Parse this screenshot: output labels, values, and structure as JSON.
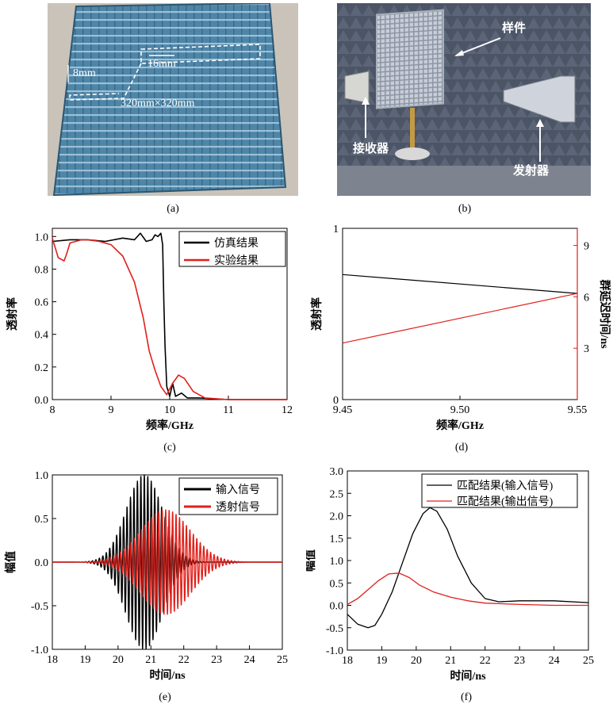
{
  "captions": {
    "a": "(a)",
    "b": "(b)",
    "c": "(c)",
    "d": "(d)",
    "e": "(e)",
    "f": "(f)"
  },
  "photo_a": {
    "dim_thickness": "8mm",
    "dim_period": "16mm",
    "dim_size": "320mm×320mm",
    "colors": {
      "plate": "#4f86a8",
      "bg": "#c9c3b9"
    }
  },
  "photo_b": {
    "label_sample": "样件",
    "label_receiver": "接收器",
    "label_transmitter": "发射器",
    "colors": {
      "chamber": "#4c5566"
    }
  },
  "chart_data": [
    {
      "id": "c",
      "type": "line",
      "xlabel": "频率/GHz",
      "ylabel": "透射率",
      "xlim": [
        8,
        12
      ],
      "ylim": [
        0,
        1.0
      ],
      "xticks": [
        "8",
        "9",
        "10",
        "11",
        "12"
      ],
      "yticks": [
        "0.0",
        "0.2",
        "0.4",
        "0.6",
        "0.8",
        "1.0"
      ],
      "legend": "top-right",
      "series": [
        {
          "name": "仿真结果",
          "color": "#000000",
          "x": [
            8.0,
            8.3,
            8.6,
            8.9,
            9.2,
            9.4,
            9.5,
            9.6,
            9.7,
            9.75,
            9.8,
            9.85,
            9.88,
            9.9,
            9.92,
            9.95,
            10.0,
            10.05,
            10.1,
            10.2,
            10.3,
            10.5,
            11.0,
            12.0
          ],
          "y": [
            0.97,
            0.98,
            0.98,
            0.97,
            0.99,
            0.98,
            1.02,
            0.97,
            0.98,
            1.01,
            1.0,
            1.02,
            0.95,
            0.6,
            0.33,
            0.08,
            0.02,
            0.1,
            0.02,
            0.04,
            0.01,
            0.01,
            0.0,
            0.0
          ]
        },
        {
          "name": "实验结果",
          "color": "#e0201b",
          "x": [
            8.0,
            8.1,
            8.2,
            8.25,
            8.3,
            8.5,
            8.6,
            8.8,
            9.0,
            9.2,
            9.4,
            9.55,
            9.65,
            9.75,
            9.85,
            9.95,
            10.05,
            10.15,
            10.25,
            10.4,
            10.6,
            11.0,
            12.0
          ],
          "y": [
            0.99,
            0.87,
            0.85,
            0.9,
            0.96,
            0.98,
            0.98,
            0.97,
            0.95,
            0.88,
            0.72,
            0.5,
            0.3,
            0.18,
            0.08,
            0.03,
            0.1,
            0.15,
            0.13,
            0.05,
            0.01,
            0.0,
            0.0
          ]
        }
      ]
    },
    {
      "id": "d",
      "type": "line",
      "xlabel": "频率/GHz",
      "ylabel": "透射率",
      "ylabel_right": "群延迟时间/ns",
      "xlim": [
        9.45,
        9.55
      ],
      "ylim": [
        0,
        1
      ],
      "ylim_right": [
        0,
        10
      ],
      "xticks": [
        "9.45",
        "9.50",
        "9.55"
      ],
      "yticks": [
        "0",
        "1"
      ],
      "yticks_right": [
        "3",
        "6",
        "9"
      ],
      "series": [
        {
          "name": "透射率",
          "color": "#000000",
          "axis": "left",
          "x": [
            9.45,
            9.55
          ],
          "y": [
            0.73,
            0.62
          ]
        },
        {
          "name": "群延迟时间",
          "color": "#e0201b",
          "axis": "right",
          "x": [
            9.45,
            9.55
          ],
          "y": [
            3.3,
            6.2
          ]
        }
      ]
    },
    {
      "id": "e",
      "type": "line",
      "xlabel": "时间/ns",
      "ylabel": "幅值",
      "xlim": [
        18,
        25
      ],
      "ylim": [
        -1.0,
        1.0
      ],
      "xticks": [
        "18",
        "19",
        "20",
        "21",
        "22",
        "23",
        "24",
        "25"
      ],
      "yticks": [
        "-1.0",
        "-0.5",
        "0.0",
        "0.5",
        "1.0"
      ],
      "legend": "top-right",
      "series": [
        {
          "name": "输入信号",
          "color": "#000000",
          "envelope": {
            "center_ns": 20.8,
            "sigma_ns": 0.55,
            "amplitude": 1.0,
            "freq_ghz": 9.5
          }
        },
        {
          "name": "透射信号",
          "color": "#e0201b",
          "envelope": {
            "center_ns": 21.45,
            "sigma_ns": 0.75,
            "amplitude": 0.6,
            "freq_ghz": 9.5
          }
        }
      ]
    },
    {
      "id": "f",
      "type": "line",
      "xlabel": "时间/ns",
      "ylabel": "幅值",
      "xlim": [
        18,
        25
      ],
      "ylim": [
        -1.0,
        3.0
      ],
      "xticks": [
        "18",
        "19",
        "20",
        "21",
        "22",
        "23",
        "24",
        "25"
      ],
      "yticks": [
        "-1.0",
        "-0.5",
        "0.0",
        "0.5",
        "1.0",
        "1.5",
        "2.0",
        "2.5",
        "3.0"
      ],
      "legend": "top-right",
      "series": [
        {
          "name": "匹配结果(输入信号)",
          "color": "#000000",
          "x": [
            18.0,
            18.3,
            18.6,
            18.8,
            19.0,
            19.3,
            19.6,
            19.9,
            20.2,
            20.4,
            20.6,
            20.9,
            21.2,
            21.6,
            22.0,
            22.4,
            23.0,
            24.0,
            25.0
          ],
          "y": [
            -0.2,
            -0.42,
            -0.5,
            -0.45,
            -0.2,
            0.3,
            0.95,
            1.6,
            2.05,
            2.18,
            2.1,
            1.7,
            1.1,
            0.5,
            0.15,
            0.08,
            0.1,
            0.1,
            0.06
          ]
        },
        {
          "name": "匹配结果(输出信号)",
          "color": "#e0201b",
          "x": [
            18.0,
            18.3,
            18.6,
            18.9,
            19.2,
            19.5,
            19.8,
            20.1,
            20.5,
            21.0,
            21.5,
            22.0,
            23.0,
            24.0,
            25.0
          ],
          "y": [
            0.02,
            0.15,
            0.35,
            0.55,
            0.7,
            0.72,
            0.62,
            0.45,
            0.3,
            0.18,
            0.1,
            0.05,
            0.02,
            0.0,
            0.0
          ]
        }
      ]
    }
  ]
}
